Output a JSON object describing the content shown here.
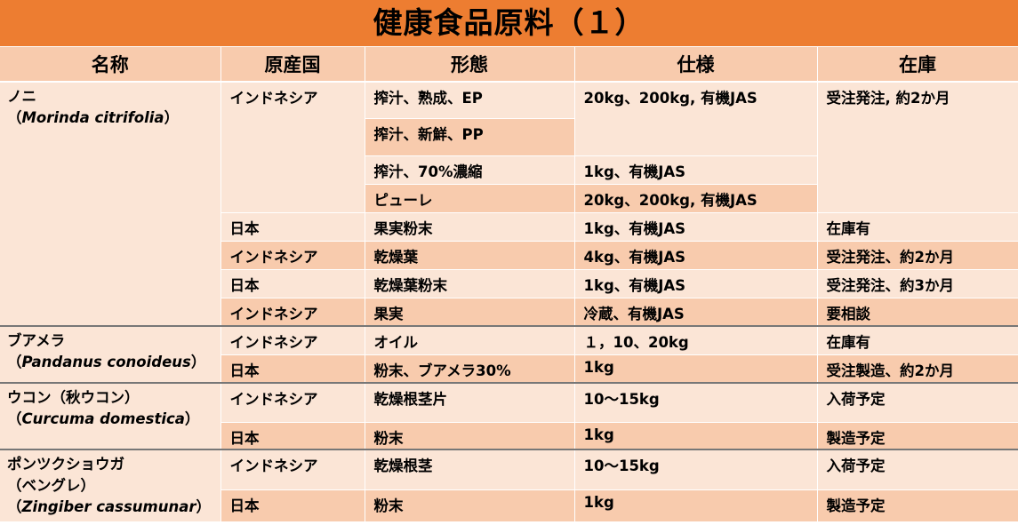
{
  "title": "健康食品原料（１）",
  "headers": [
    "名称",
    "原産国",
    "形態",
    "仕様",
    "在庫"
  ],
  "products": [
    {
      "name_lines": [
        "ノニ"
      ],
      "latin": "Morinda citrifolia",
      "rows": [
        {
          "origin": "インドネシア",
          "form": "搾汁、熟成、EP",
          "spec": "20kg、200kg, 有機JAS",
          "stock": "受注発注, 約2か月"
        },
        {
          "form": "搾汁、新鮮、PP"
        },
        {
          "form": "搾汁、70%濃縮",
          "spec": "1kg、有機JAS"
        },
        {
          "form": "ピューレ",
          "spec": "20kg、200kg, 有機JAS"
        },
        {
          "origin": "日本",
          "form": "果実粉末",
          "spec": "1kg、有機JAS",
          "stock": "在庫有"
        },
        {
          "origin": "インドネシア",
          "form": "乾燥葉",
          "spec": "4kg、有機JAS",
          "stock": "受注発注、約2か月"
        },
        {
          "origin": "日本",
          "form": "乾燥葉粉末",
          "spec": "1kg、有機JAS",
          "stock": "受注発注、約3か月"
        },
        {
          "origin": "インドネシア",
          "form": "果実",
          "spec": "冷蔵、有機JAS",
          "stock": "要相談"
        }
      ]
    },
    {
      "name_lines": [
        "ブアメラ"
      ],
      "latin": "Pandanus conoideus",
      "rows": [
        {
          "origin": "インドネシア",
          "form": "オイル",
          "spec": "１，10、20kg",
          "stock": "在庫有"
        },
        {
          "origin": "日本",
          "form": "粉末、ブアメラ30%",
          "spec": "1kg",
          "stock": "受注製造、約2か月"
        }
      ]
    },
    {
      "name_lines": [
        "ウコン（秋ウコン）"
      ],
      "latin": "Curcuma domestica",
      "rows": [
        {
          "origin": "インドネシア",
          "form": "乾燥根茎片",
          "spec": "10～15kg",
          "stock": "入荷予定"
        },
        {
          "origin": "日本",
          "form": "粉末",
          "spec": "1kg",
          "stock": "製造予定"
        }
      ]
    },
    {
      "name_lines": [
        "ポンツクショウガ",
        "（ベングレ）"
      ],
      "latin": "Zingiber cassumunar",
      "rows": [
        {
          "origin": "インドネシア",
          "form": "乾燥根茎",
          "spec": "10～15kg",
          "stock": "入荷予定"
        },
        {
          "origin": "日本",
          "form": "粉末",
          "spec": "1kg",
          "stock": "製造予定"
        }
      ]
    }
  ]
}
